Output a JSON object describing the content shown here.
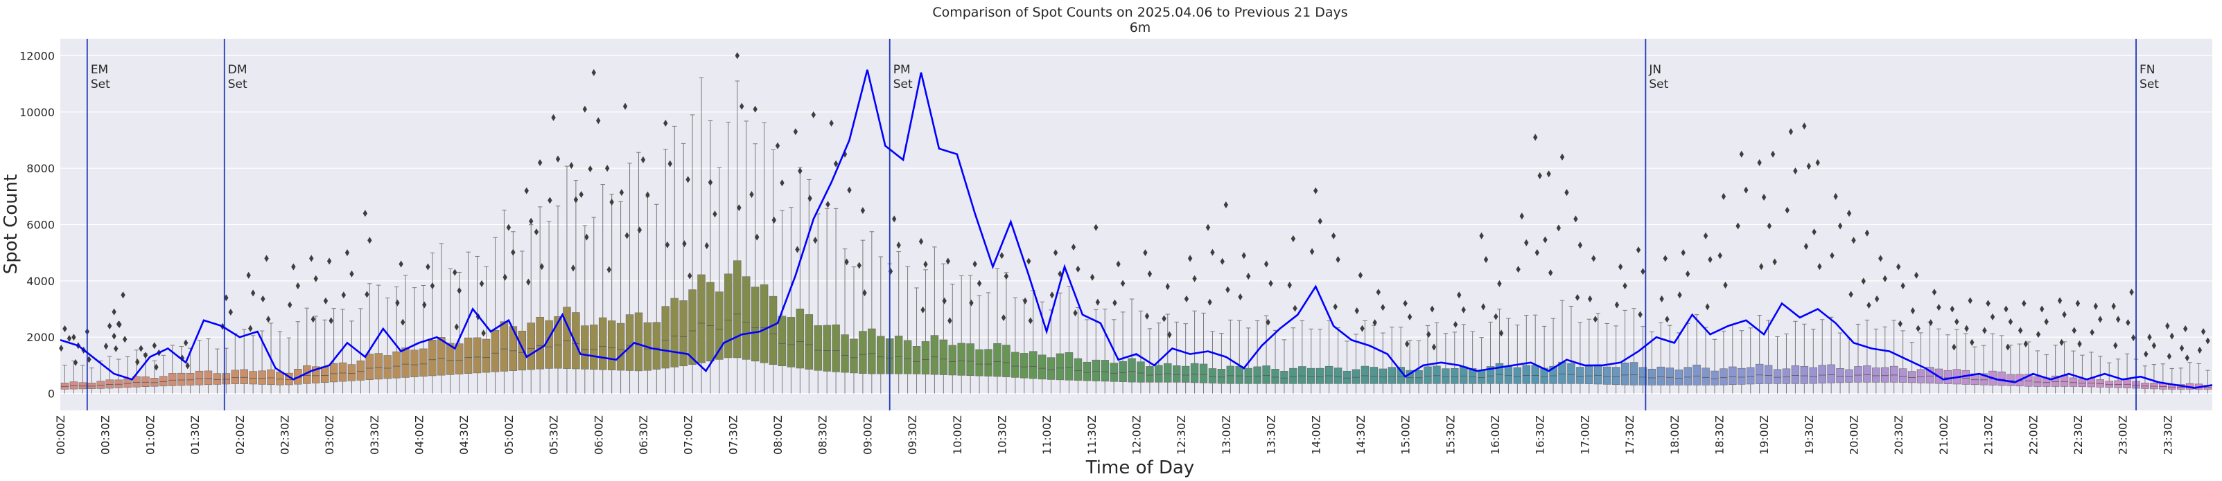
{
  "chart_data": {
    "type": "box",
    "title": "Comparison of Spot Counts on 2025.04.06 to Previous 21 Days",
    "subtitle": "6m",
    "xlabel": "Time of Day",
    "ylabel": "Spot Count",
    "ylim": [
      -600,
      12600
    ],
    "y_ticks": [
      0,
      2000,
      4000,
      6000,
      8000,
      10000,
      12000
    ],
    "x_range": [
      0,
      24
    ],
    "x_tick_labels": [
      "00:00Z",
      "00:30Z",
      "01:00Z",
      "01:30Z",
      "02:00Z",
      "02:30Z",
      "03:00Z",
      "03:30Z",
      "04:00Z",
      "04:30Z",
      "05:00Z",
      "05:30Z",
      "06:00Z",
      "06:30Z",
      "07:00Z",
      "07:30Z",
      "08:00Z",
      "08:30Z",
      "09:00Z",
      "09:30Z",
      "10:00Z",
      "10:30Z",
      "11:00Z",
      "11:30Z",
      "12:00Z",
      "12:30Z",
      "13:00Z",
      "13:30Z",
      "14:00Z",
      "14:30Z",
      "15:00Z",
      "15:30Z",
      "16:00Z",
      "16:30Z",
      "17:00Z",
      "17:30Z",
      "18:00Z",
      "18:30Z",
      "19:00Z",
      "19:30Z",
      "20:00Z",
      "20:30Z",
      "21:00Z",
      "21:30Z",
      "22:00Z",
      "22:30Z",
      "23:00Z",
      "23:30Z"
    ],
    "annotations": [
      {
        "hour": 0.3,
        "line1": "EM",
        "line2": "Set"
      },
      {
        "hour": 1.83,
        "line1": "DM",
        "line2": "Set"
      },
      {
        "hour": 9.25,
        "line1": "PM",
        "line2": "Set"
      },
      {
        "hour": 17.68,
        "line1": "JN",
        "line2": "Set"
      },
      {
        "hour": 23.15,
        "line1": "FN",
        "line2": "Set"
      }
    ],
    "box_profile_hours": [
      0,
      0.5,
      1.0,
      1.5,
      2.0,
      2.5,
      3.0,
      3.5,
      4.0,
      4.5,
      5.0,
      5.5,
      6.0,
      6.5,
      7.0,
      7.5,
      8.0,
      8.5,
      9.0,
      9.5,
      10.0,
      10.5,
      11.0,
      11.5,
      12.0,
      12.5,
      13.0,
      13.5,
      14.0,
      14.5,
      15.0,
      15.5,
      16.0,
      16.5,
      17.0,
      17.5,
      18.0,
      18.5,
      19.0,
      19.5,
      20.0,
      20.5,
      21.0,
      21.5,
      22.0,
      22.5,
      23.0,
      23.5,
      24.0
    ],
    "box_q1": [
      150,
      180,
      250,
      300,
      350,
      300,
      400,
      500,
      600,
      700,
      800,
      900,
      850,
      800,
      1000,
      1300,
      1000,
      800,
      700,
      700,
      650,
      600,
      500,
      450,
      400,
      400,
      350,
      350,
      350,
      350,
      350,
      350,
      350,
      350,
      350,
      300,
      300,
      300,
      350,
      350,
      400,
      400,
      350,
      300,
      250,
      250,
      200,
      150,
      150
    ],
    "box_q3": [
      350,
      450,
      600,
      750,
      800,
      800,
      1000,
      1300,
      1700,
      1900,
      2300,
      2800,
      2600,
      2600,
      3500,
      4500,
      3200,
      2400,
      2100,
      1900,
      1800,
      1600,
      1400,
      1200,
      1100,
      1000,
      950,
      900,
      900,
      900,
      900,
      900,
      950,
      1000,
      1000,
      1000,
      900,
      900,
      950,
      950,
      950,
      900,
      850,
      750,
      650,
      550,
      450,
      350,
      300
    ],
    "box_whisker_high": [
      900,
      1200,
      1400,
      1700,
      2000,
      2400,
      2800,
      3400,
      4300,
      4800,
      5500,
      6800,
      7000,
      7500,
      9500,
      10200,
      8000,
      6500,
      5000,
      4600,
      4200,
      3800,
      3400,
      3000,
      2800,
      2600,
      2500,
      2400,
      2300,
      2300,
      2200,
      2200,
      2500,
      2800,
      2800,
      2600,
      2400,
      2300,
      2400,
      2400,
      2400,
      2300,
      2200,
      1900,
      1700,
      1500,
      1200,
      1000,
      900
    ],
    "outlier_seeds": [
      [
        0.05,
        2300
      ],
      [
        0.15,
        2000
      ],
      [
        0.3,
        2200
      ],
      [
        0.55,
        2400
      ],
      [
        0.6,
        2900
      ],
      [
        0.7,
        3500
      ],
      [
        0.9,
        1600
      ],
      [
        1.05,
        1700
      ],
      [
        1.4,
        1800
      ],
      [
        1.85,
        3400
      ],
      [
        2.1,
        4200
      ],
      [
        2.3,
        4800
      ],
      [
        2.6,
        4500
      ],
      [
        2.8,
        4800
      ],
      [
        3.0,
        4700
      ],
      [
        3.2,
        5000
      ],
      [
        3.4,
        6400
      ],
      [
        3.8,
        4600
      ],
      [
        4.1,
        4500
      ],
      [
        4.4,
        4300
      ],
      [
        4.7,
        3900
      ],
      [
        5.0,
        5900
      ],
      [
        5.2,
        7200
      ],
      [
        5.35,
        8200
      ],
      [
        5.5,
        9800
      ],
      [
        5.7,
        8100
      ],
      [
        5.85,
        10100
      ],
      [
        5.95,
        11400
      ],
      [
        6.1,
        8000
      ],
      [
        6.3,
        10200
      ],
      [
        6.5,
        8300
      ],
      [
        6.75,
        9600
      ],
      [
        7.0,
        7600
      ],
      [
        7.25,
        7500
      ],
      [
        7.55,
        12000
      ],
      [
        7.75,
        10100
      ],
      [
        8.0,
        8800
      ],
      [
        8.2,
        9300
      ],
      [
        8.4,
        9900
      ],
      [
        8.6,
        9600
      ],
      [
        8.75,
        8500
      ],
      [
        8.95,
        6500
      ],
      [
        9.3,
        6200
      ],
      [
        9.6,
        5400
      ],
      [
        9.9,
        4700
      ],
      [
        10.2,
        4600
      ],
      [
        10.5,
        4900
      ],
      [
        10.8,
        4700
      ],
      [
        11.1,
        5000
      ],
      [
        11.3,
        5200
      ],
      [
        11.55,
        5900
      ],
      [
        11.8,
        4600
      ],
      [
        12.1,
        5000
      ],
      [
        12.35,
        3800
      ],
      [
        12.6,
        4800
      ],
      [
        12.8,
        5900
      ],
      [
        13.0,
        6700
      ],
      [
        13.2,
        4900
      ],
      [
        13.45,
        4600
      ],
      [
        13.75,
        5500
      ],
      [
        14.0,
        7200
      ],
      [
        14.2,
        5600
      ],
      [
        14.5,
        4200
      ],
      [
        14.7,
        3600
      ],
      [
        15.0,
        3200
      ],
      [
        15.3,
        3000
      ],
      [
        15.6,
        3500
      ],
      [
        15.85,
        5600
      ],
      [
        16.05,
        3900
      ],
      [
        16.3,
        6300
      ],
      [
        16.45,
        9100
      ],
      [
        16.6,
        7800
      ],
      [
        16.75,
        8400
      ],
      [
        16.9,
        6200
      ],
      [
        17.1,
        4800
      ],
      [
        17.4,
        4500
      ],
      [
        17.6,
        5100
      ],
      [
        17.9,
        4800
      ],
      [
        18.1,
        5000
      ],
      [
        18.35,
        5600
      ],
      [
        18.55,
        7000
      ],
      [
        18.75,
        8500
      ],
      [
        18.95,
        8200
      ],
      [
        19.1,
        8500
      ],
      [
        19.3,
        9300
      ],
      [
        19.45,
        9500
      ],
      [
        19.6,
        8200
      ],
      [
        19.8,
        7000
      ],
      [
        19.95,
        6400
      ],
      [
        20.15,
        5700
      ],
      [
        20.3,
        4800
      ],
      [
        20.5,
        4500
      ],
      [
        20.7,
        4200
      ],
      [
        20.9,
        3600
      ],
      [
        21.1,
        3000
      ],
      [
        21.3,
        3300
      ],
      [
        21.5,
        3200
      ],
      [
        21.7,
        3000
      ],
      [
        21.9,
        3200
      ],
      [
        22.1,
        3000
      ],
      [
        22.3,
        3300
      ],
      [
        22.5,
        3200
      ],
      [
        22.7,
        3100
      ],
      [
        22.9,
        3100
      ],
      [
        23.1,
        3600
      ],
      [
        23.3,
        2000
      ],
      [
        23.5,
        2400
      ],
      [
        23.7,
        2300
      ],
      [
        23.9,
        2200
      ]
    ],
    "series": [
      {
        "name": "2025.04.06",
        "color": "#0000ff",
        "x": [
          0,
          0.2,
          0.4,
          0.6,
          0.8,
          1.0,
          1.2,
          1.4,
          1.6,
          1.8,
          2.0,
          2.2,
          2.4,
          2.6,
          2.8,
          3.0,
          3.2,
          3.4,
          3.6,
          3.8,
          4.0,
          4.2,
          4.4,
          4.6,
          4.8,
          5.0,
          5.2,
          5.4,
          5.6,
          5.8,
          6.0,
          6.2,
          6.4,
          6.6,
          6.8,
          7.0,
          7.2,
          7.4,
          7.6,
          7.8,
          8.0,
          8.2,
          8.4,
          8.6,
          8.8,
          9.0,
          9.2,
          9.4,
          9.6,
          9.8,
          10.0,
          10.2,
          10.4,
          10.6,
          10.8,
          11.0,
          11.2,
          11.4,
          11.6,
          11.8,
          12.0,
          12.2,
          12.4,
          12.6,
          12.8,
          13.0,
          13.2,
          13.4,
          13.6,
          13.8,
          14.0,
          14.2,
          14.4,
          14.6,
          14.8,
          15.0,
          15.2,
          15.4,
          15.6,
          15.8,
          16.0,
          16.2,
          16.4,
          16.6,
          16.8,
          17.0,
          17.2,
          17.4,
          17.6,
          17.8,
          18.0,
          18.2,
          18.4,
          18.6,
          18.8,
          19.0,
          19.2,
          19.4,
          19.6,
          19.8,
          20.0,
          20.2,
          20.4,
          20.6,
          20.8,
          21.0,
          21.2,
          21.4,
          21.6,
          21.8,
          22.0,
          22.2,
          22.4,
          22.6,
          22.8,
          23.0,
          23.2,
          23.4,
          23.6,
          23.8,
          24.0
        ],
        "y": [
          1900,
          1700,
          1200,
          700,
          500,
          1300,
          1600,
          1100,
          2600,
          2400,
          2000,
          2200,
          900,
          500,
          800,
          1000,
          1800,
          1300,
          2300,
          1500,
          1800,
          2000,
          1600,
          3000,
          2200,
          2600,
          1300,
          1700,
          2800,
          1400,
          1300,
          1200,
          1800,
          1600,
          1500,
          1400,
          800,
          1800,
          2100,
          2200,
          2500,
          4200,
          6200,
          7500,
          9000,
          11500,
          8800,
          8300,
          11400,
          8700,
          8500,
          6400,
          4500,
          6100,
          4200,
          2200,
          4500,
          2800,
          2500,
          1200,
          1400,
          1000,
          1600,
          1400,
          1500,
          1300,
          900,
          1700,
          2300,
          2800,
          3800,
          2400,
          1900,
          1700,
          1400,
          600,
          1000,
          1100,
          1000,
          800,
          900,
          1000,
          1100,
          800,
          1200,
          1000,
          1000,
          1100,
          1500,
          2000,
          1800,
          2800,
          2100,
          2400,
          2600,
          2100,
          3200,
          2700,
          3000,
          2500,
          1800,
          1600,
          1500,
          1200,
          900,
          500,
          600,
          700,
          500,
          400,
          700,
          500,
          700,
          500,
          700,
          500,
          600,
          400,
          300,
          200,
          300
        ]
      }
    ]
  }
}
